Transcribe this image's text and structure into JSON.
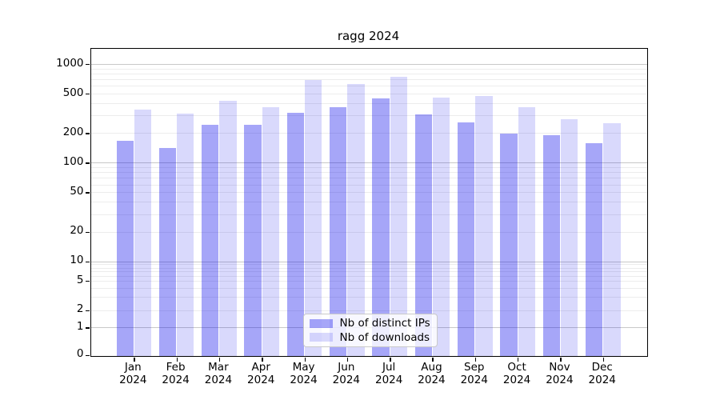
{
  "title": "ragg 2024",
  "chart_data": {
    "type": "bar",
    "title": "ragg 2024",
    "categories": [
      "Jan 2024",
      "Feb 2024",
      "Mar 2024",
      "Apr 2024",
      "May 2024",
      "Jun 2024",
      "Jul 2024",
      "Aug 2024",
      "Sep 2024",
      "Oct 2024",
      "Nov 2024",
      "Dec 2024"
    ],
    "series": [
      {
        "name": "Nb of distinct IPs",
        "color": "rgba(0,0,235,0.35)",
        "values": [
          160,
          136,
          234,
          234,
          307,
          351,
          429,
          295,
          245,
          191,
          183,
          152
        ]
      },
      {
        "name": "Nb of downloads",
        "color": "rgba(0,0,235,0.15)",
        "values": [
          335,
          300,
          410,
          350,
          665,
          607,
          710,
          437,
          459,
          351,
          265,
          242
        ]
      }
    ],
    "xlabel": "",
    "ylabel": "",
    "y_scale": "symlog",
    "y_ticks": [
      0,
      1,
      2,
      5,
      10,
      20,
      50,
      100,
      200,
      500,
      1000
    ],
    "ylim": [
      0,
      1400
    ],
    "grid": "horizontal log minor+major gridlines",
    "legend_position": "lower center inside plot"
  },
  "legend": {
    "items": [
      {
        "label": "Nb of distinct IPs"
      },
      {
        "label": "Nb of downloads"
      }
    ]
  }
}
